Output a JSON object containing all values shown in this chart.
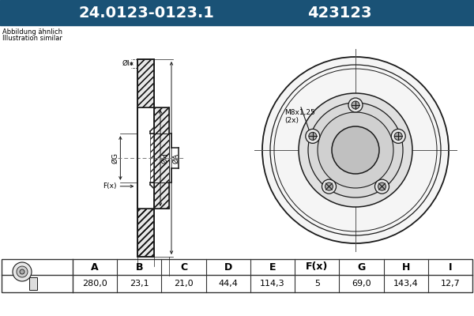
{
  "title_part1": "24.0123-0123.1",
  "title_part2": "423123",
  "title_bg": "#1a5276",
  "title_fg": "#ffffff",
  "subtitle_line1": "Abbildung ähnlich",
  "subtitle_line2": "Illustration similar",
  "table_headers": [
    "A",
    "B",
    "C",
    "D",
    "E",
    "F(x)",
    "G",
    "H",
    "I"
  ],
  "table_values": [
    "280,0",
    "23,1",
    "21,0",
    "44,4",
    "114,3",
    "5",
    "69,0",
    "143,4",
    "12,7"
  ],
  "annotation_bolt": "M8x1,25\n(2x)",
  "bg_color": "#ffffff",
  "lc": "#1a1a1a"
}
